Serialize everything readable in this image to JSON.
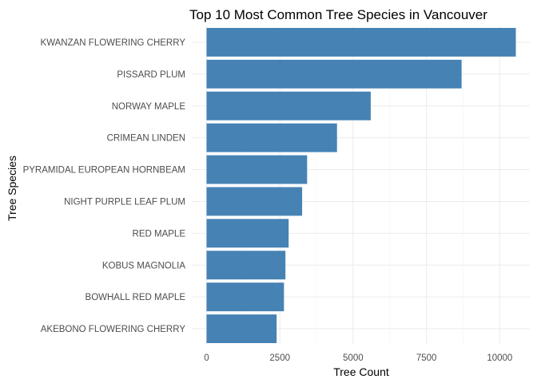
{
  "chart_data": {
    "type": "bar",
    "orientation": "horizontal",
    "title": "Top 10 Most Common Tree Species in Vancouver",
    "xlabel": "Tree Count",
    "ylabel": "Tree Species",
    "categories": [
      "KWANZAN FLOWERING CHERRY",
      "PISSARD PLUM",
      "NORWAY MAPLE",
      "CRIMEAN LINDEN",
      "PYRAMIDAL EUROPEAN HORNBEAM",
      "NIGHT PURPLE LEAF PLUM",
      "RED MAPLE",
      "KOBUS MAGNOLIA",
      "BOWHALL RED MAPLE",
      "AKEBONO FLOWERING CHERRY"
    ],
    "values": [
      10550,
      8700,
      5600,
      4450,
      3430,
      3260,
      2800,
      2690,
      2640,
      2390
    ],
    "xlim": [
      0,
      10550
    ],
    "xticks": [
      0,
      2500,
      5000,
      7500,
      10000
    ],
    "xtick_labels": [
      "0",
      "2500",
      "5000",
      "7500",
      "10000"
    ],
    "bar_color": "#4682b4",
    "grid": true,
    "legend": "none"
  }
}
